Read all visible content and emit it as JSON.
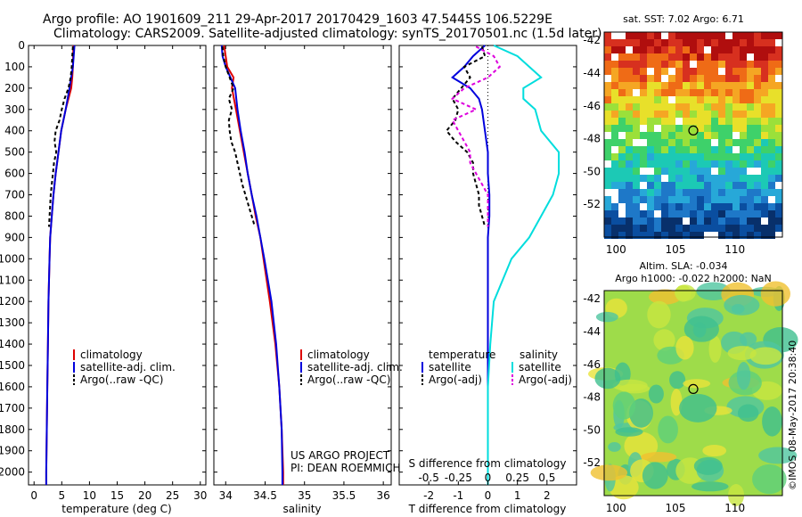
{
  "header": {
    "line1": "Argo profile: AO 1901609_211 29-Apr-2017 20170429_1603 47.5445S 106.5229E",
    "line2": "Climatology: CARS2009. Satellite-adjusted climatology: synTS_20170501.nc (1.5d later)"
  },
  "colors": {
    "climatology": "#dd0000",
    "satellite": "#0000dd",
    "argo": "#000000",
    "salinity_satellite": "#00dddd",
    "salinity_argo": "#dd00dd"
  },
  "depth_ticks": [
    "0",
    "100",
    "200",
    "300",
    "400",
    "500",
    "600",
    "700",
    "800",
    "900",
    "1000",
    "1100",
    "1200",
    "1300",
    "1400",
    "1500",
    "1600",
    "1700",
    "1800",
    "1900",
    "2000"
  ],
  "chart_data": [
    {
      "type": "line",
      "name": "temperature-panel",
      "xlabel": "temperature (deg C)",
      "ylim": [
        2060,
        0
      ],
      "xlim": [
        -1,
        31
      ],
      "xticks": [
        0,
        5,
        10,
        15,
        20,
        25,
        30
      ],
      "legend": [
        "climatology",
        "satellite-adj. clim.",
        "Argo(..raw -QC)"
      ],
      "series": [
        {
          "name": "climatology",
          "depth": [
            0,
            100,
            150,
            200,
            300,
            400,
            500,
            600,
            700,
            800,
            900,
            1000,
            1200,
            1400,
            1600,
            1800,
            2000,
            2060
          ],
          "values": [
            7.1,
            7.0,
            6.9,
            6.7,
            5.7,
            4.9,
            4.4,
            3.9,
            3.5,
            3.2,
            2.9,
            2.8,
            2.6,
            2.5,
            2.4,
            2.3,
            2.2,
            2.2
          ]
        },
        {
          "name": "satellite-adj. clim.",
          "depth": [
            0,
            100,
            200,
            300,
            400,
            500,
            600,
            700,
            800,
            900,
            1000,
            1200,
            1400,
            1600,
            1800,
            2000,
            2060
          ],
          "values": [
            7.3,
            7.0,
            6.4,
            5.7,
            4.9,
            4.4,
            3.9,
            3.5,
            3.2,
            2.9,
            2.8,
            2.6,
            2.5,
            2.4,
            2.3,
            2.2,
            2.2
          ]
        },
        {
          "name": "Argo(..raw -QC)",
          "depth": [
            5,
            50,
            100,
            150,
            200,
            250,
            300,
            350,
            400,
            450,
            500,
            550,
            600,
            650,
            700,
            750,
            800,
            850
          ],
          "values": [
            7.0,
            6.9,
            6.8,
            6.6,
            6.2,
            5.5,
            5.0,
            4.6,
            3.9,
            3.7,
            4.0,
            3.6,
            3.4,
            3.2,
            3.0,
            2.9,
            2.8,
            2.7
          ]
        }
      ]
    },
    {
      "type": "line",
      "name": "salinity-panel",
      "xlabel": "salinity",
      "ylim": [
        2060,
        0
      ],
      "xlim": [
        33.85,
        36.1
      ],
      "xticks": [
        34,
        34.5,
        35,
        35.5,
        36
      ],
      "legend": [
        "climatology",
        "satellite-adj. clim.",
        "Argo(..raw -QC)"
      ],
      "series": [
        {
          "name": "climatology",
          "depth": [
            0,
            100,
            150,
            200,
            300,
            400,
            500,
            600,
            700,
            800,
            900,
            1000,
            1200,
            1400,
            1600,
            1800,
            2000,
            2060
          ],
          "values": [
            33.98,
            34.02,
            34.1,
            34.08,
            34.13,
            34.18,
            34.23,
            34.28,
            34.33,
            34.38,
            34.44,
            34.48,
            34.56,
            34.63,
            34.68,
            34.71,
            34.73,
            34.73
          ]
        },
        {
          "name": "satellite-adj. clim.",
          "depth": [
            0,
            50,
            100,
            200,
            300,
            400,
            500,
            600,
            700,
            800,
            900,
            1000,
            1200,
            1400,
            1600,
            1800,
            2000,
            2060
          ],
          "values": [
            33.95,
            33.96,
            34.0,
            34.12,
            34.15,
            34.19,
            34.24,
            34.28,
            34.33,
            34.39,
            34.44,
            34.49,
            34.58,
            34.64,
            34.68,
            34.71,
            34.72,
            34.72
          ]
        },
        {
          "name": "Argo(..raw -QC)",
          "depth": [
            5,
            50,
            100,
            150,
            200,
            250,
            300,
            350,
            400,
            450,
            500,
            550,
            600,
            650,
            700,
            750,
            800,
            850
          ],
          "values": [
            33.96,
            33.97,
            34.0,
            34.05,
            34.1,
            34.04,
            34.08,
            34.04,
            34.05,
            34.07,
            34.12,
            34.15,
            34.18,
            34.21,
            34.25,
            34.29,
            34.33,
            34.37
          ]
        }
      ],
      "annotations": [
        "US ARGO PROJECT",
        "PI: DEAN ROEMMICH"
      ]
    },
    {
      "type": "line",
      "name": "difference-panel",
      "xlabel": "T difference from climatology",
      "top_label": "S difference from climatology",
      "ylim": [
        2060,
        0
      ],
      "xlim": [
        -3,
        3
      ],
      "xticks_T": [
        -2,
        -1,
        0,
        1,
        2
      ],
      "xticks_S": [
        "-0.5",
        "-0.25",
        "0",
        "0.25",
        "0.5"
      ],
      "legend": {
        "temperature_title": "temperature",
        "salinity_title": "salinity",
        "items": [
          "satellite",
          "Argo(-adj)",
          "satellite",
          "Argo(-adj)"
        ]
      },
      "series": [
        {
          "name": "temperature satellite",
          "depth": [
            0,
            50,
            100,
            150,
            200,
            250,
            300,
            400,
            500,
            600,
            700,
            800,
            900,
            1000,
            1200,
            1400,
            1600,
            1800,
            2000,
            2060
          ],
          "values": [
            -0.1,
            -0.5,
            -0.8,
            -1.2,
            -0.6,
            -0.3,
            -0.2,
            -0.1,
            0.0,
            0.0,
            0.05,
            0.05,
            0.0,
            0.0,
            0.0,
            0.0,
            0.0,
            0.0,
            0.0,
            0.0
          ]
        },
        {
          "name": "temperature Argo(-adj)",
          "depth": [
            5,
            50,
            100,
            150,
            200,
            250,
            300,
            350,
            400,
            450,
            500,
            550,
            600,
            650,
            700,
            750,
            800,
            850
          ],
          "values": [
            -0.2,
            -0.1,
            -0.8,
            -0.6,
            -0.9,
            -1.2,
            -1.0,
            -1.1,
            -1.4,
            -1.1,
            -0.7,
            -0.5,
            -0.5,
            -0.4,
            -0.3,
            -0.3,
            -0.2,
            -0.1
          ]
        },
        {
          "name": "salinity satellite",
          "depth": [
            0,
            50,
            100,
            150,
            200,
            250,
            300,
            400,
            500,
            600,
            700,
            800,
            900,
            1000,
            1200,
            1400,
            1600,
            1800,
            2000,
            2060
          ],
          "values": [
            0.05,
            0.25,
            0.35,
            0.45,
            0.3,
            0.3,
            0.4,
            0.45,
            0.6,
            0.6,
            0.55,
            0.45,
            0.35,
            0.2,
            0.05,
            0.02,
            0.0,
            0.0,
            0.0,
            0.0
          ]
        },
        {
          "name": "salinity Argo(-adj)",
          "depth": [
            5,
            50,
            100,
            150,
            200,
            250,
            300,
            350,
            400,
            450,
            500,
            550,
            600,
            650,
            700,
            750,
            800,
            850
          ],
          "values": [
            -0.1,
            0.05,
            0.1,
            0.0,
            -0.2,
            -0.3,
            -0.1,
            -0.3,
            -0.25,
            -0.2,
            -0.15,
            -0.15,
            -0.1,
            -0.05,
            0.0,
            0.0,
            0.0,
            0.0
          ]
        }
      ]
    },
    {
      "type": "heatmap",
      "name": "sst-map",
      "title": "sat. SST: 7.02 Argo: 6.71",
      "xlim": [
        99,
        114
      ],
      "ylim": [
        -54,
        -41.5
      ],
      "xticks": [
        100,
        105,
        110
      ],
      "yticks": [
        -42,
        -44,
        -46,
        -48,
        -50,
        -52
      ],
      "marker": [
        106.5,
        -47.5
      ]
    },
    {
      "type": "heatmap",
      "name": "sla-map",
      "title": "Altim. SLA: -0.034",
      "subtitle": "Argo h1000: -0.022 h2000: NaN",
      "xlim": [
        99,
        114
      ],
      "ylim": [
        -54,
        -41.5
      ],
      "xticks": [
        100,
        105,
        110
      ],
      "yticks": [
        -42,
        -44,
        -46,
        -48,
        -50,
        -52
      ],
      "marker": [
        106.5,
        -47.5
      ],
      "side_label": "©IMOS 08-May-2017 20:38:40"
    }
  ]
}
